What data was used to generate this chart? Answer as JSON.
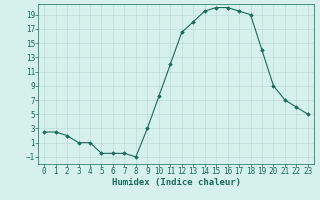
{
  "xlabel": "Humidex (Indice chaleur)",
  "x": [
    0,
    1,
    2,
    3,
    4,
    5,
    6,
    7,
    8,
    9,
    10,
    11,
    12,
    13,
    14,
    15,
    16,
    17,
    18,
    19,
    20,
    21,
    22,
    23
  ],
  "y": [
    2.5,
    2.5,
    2,
    1,
    1,
    -0.5,
    -0.5,
    -0.5,
    -1,
    3,
    7.5,
    12,
    16.5,
    18,
    19.5,
    20,
    20,
    19.5,
    19,
    14,
    9,
    7,
    6,
    5
  ],
  "line_color": "#1a6b5a",
  "marker": "D",
  "marker_size": 1.8,
  "bg_color": "#d6f0ec",
  "grid_color": "#b8d8d4",
  "ylim": [
    -2,
    20.5
  ],
  "yticks": [
    -1,
    1,
    3,
    5,
    7,
    9,
    11,
    13,
    15,
    17,
    19
  ],
  "xticks": [
    0,
    1,
    2,
    3,
    4,
    5,
    6,
    7,
    8,
    9,
    10,
    11,
    12,
    13,
    14,
    15,
    16,
    17,
    18,
    19,
    20,
    21,
    22,
    23
  ],
  "tick_label_fontsize": 5.5,
  "xlabel_fontsize": 6.5,
  "line_width": 0.8
}
